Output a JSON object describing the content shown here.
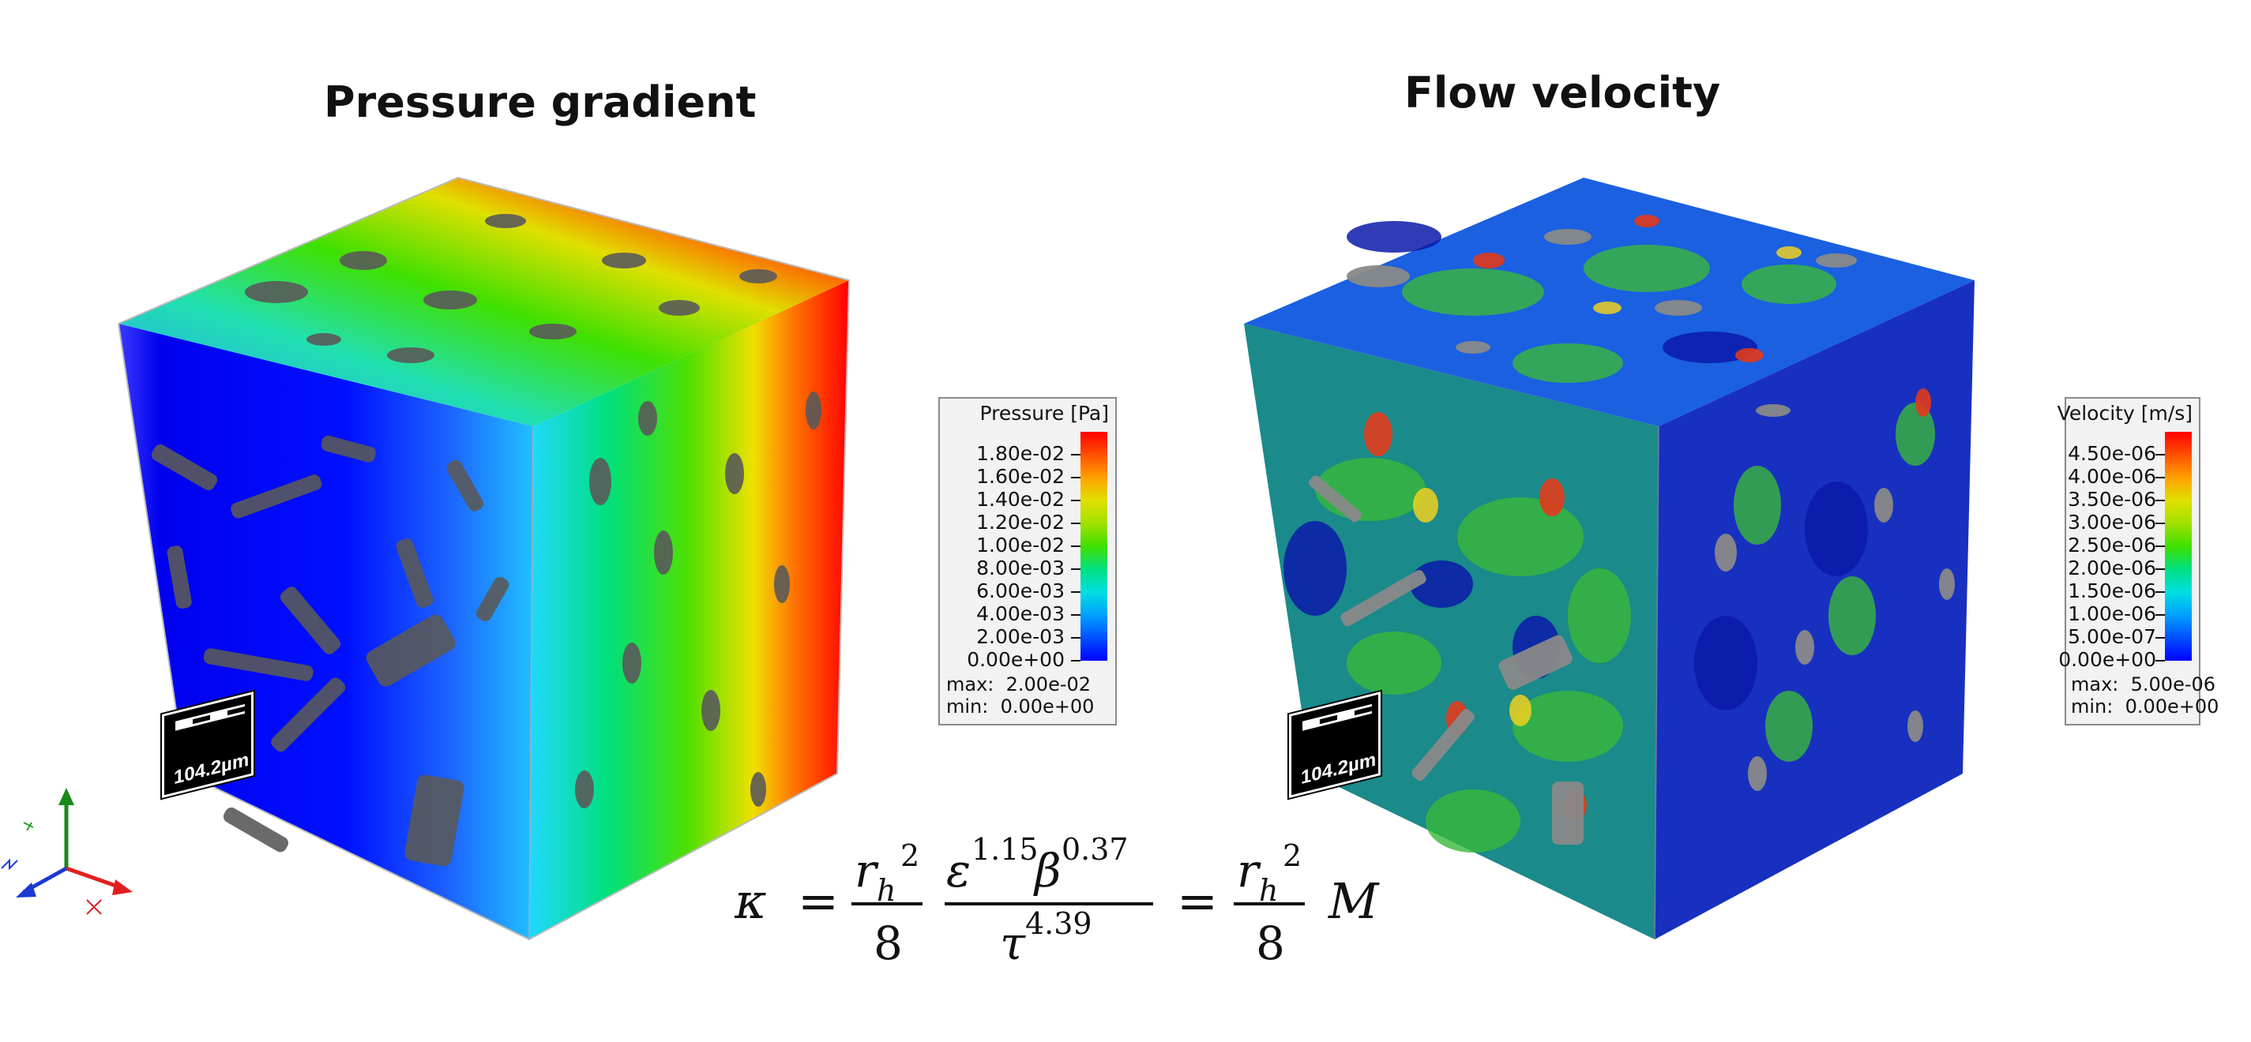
{
  "titles": {
    "left": "Pressure gradient",
    "right": "Flow velocity"
  },
  "legend_pressure": {
    "title": "Pressure [Pa]",
    "ticks": [
      "1.80e-02",
      "1.60e-02",
      "1.40e-02",
      "1.20e-02",
      "1.00e-02",
      "8.00e-03",
      "6.00e-03",
      "4.00e-03",
      "2.00e-03",
      "0.00e+00"
    ],
    "stats": "max:  2.00e-02\nmin:  0.00e+00"
  },
  "legend_velocity": {
    "title": "Velocity [m/s]",
    "ticks": [
      "4.50e-06",
      "4.00e-06",
      "3.50e-06",
      "3.00e-06",
      "2.50e-06",
      "2.00e-06",
      "1.50e-06",
      "1.00e-06",
      "5.00e-07",
      "0.00e+00"
    ],
    "stats": "max:  5.00e-06\nmin:  0.00e+00"
  },
  "scalebar": {
    "label": "104.2µm"
  },
  "colormap": [
    "#0000ff",
    "#0050ff",
    "#00a0ff",
    "#00e0e0",
    "#00e080",
    "#40e000",
    "#a0e000",
    "#e0e000",
    "#ffa000",
    "#ff5000",
    "#ff0000"
  ],
  "equation": {
    "kappa": "κ",
    "eq": "=",
    "r": "r",
    "h": "h",
    "sq": "2",
    "eight": "8",
    "eps": "ε",
    "eps_exp": "1.15",
    "beta": "β",
    "beta_exp": "0.37",
    "tau": "τ",
    "tau_exp": "4.39",
    "M": "M"
  }
}
